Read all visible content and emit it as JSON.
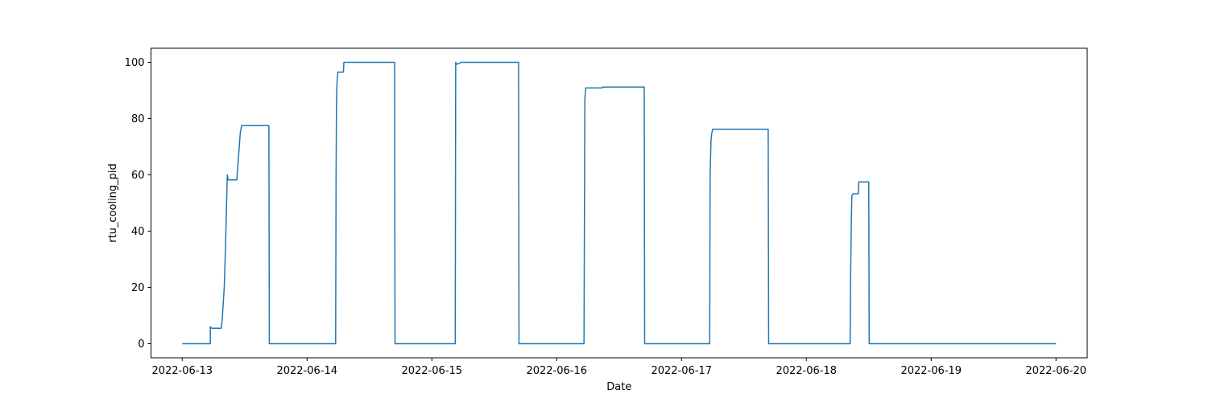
{
  "chart_data": {
    "type": "line",
    "title": "",
    "xlabel": "Date",
    "ylabel": "rtu_cooling_pid",
    "xlim": [
      "2022-06-12T18:00",
      "2022-06-20T06:00"
    ],
    "ylim": [
      -5,
      105
    ],
    "grid": false,
    "legend": "none",
    "x_ticks": [
      "2022-06-13",
      "2022-06-14",
      "2022-06-15",
      "2022-06-16",
      "2022-06-17",
      "2022-06-18",
      "2022-06-19",
      "2022-06-20"
    ],
    "y_ticks": [
      0,
      20,
      40,
      60,
      80,
      100
    ],
    "series": [
      {
        "color": "#1f77b4",
        "points": [
          [
            "2022-06-13T00:00",
            0
          ],
          [
            "2022-06-13T05:24",
            0
          ],
          [
            "2022-06-13T05:24",
            6.0
          ],
          [
            "2022-06-13T05:40",
            5.5
          ],
          [
            "2022-06-13T07:30",
            5.5
          ],
          [
            "2022-06-13T07:40",
            8.0
          ],
          [
            "2022-06-13T08:05",
            20.0
          ],
          [
            "2022-06-13T08:20",
            35.0
          ],
          [
            "2022-06-13T08:40",
            60.0
          ],
          [
            "2022-06-13T08:50",
            58.2
          ],
          [
            "2022-06-13T10:30",
            58.2
          ],
          [
            "2022-06-13T11:10",
            75.0
          ],
          [
            "2022-06-13T11:25",
            77.5
          ],
          [
            "2022-06-13T16:40",
            77.5
          ],
          [
            "2022-06-13T16:45",
            0
          ],
          [
            "2022-06-14T05:30",
            0
          ],
          [
            "2022-06-14T05:35",
            60.0
          ],
          [
            "2022-06-14T05:40",
            86.0
          ],
          [
            "2022-06-14T05:45",
            92.0
          ],
          [
            "2022-06-14T05:55",
            96.5
          ],
          [
            "2022-06-14T07:00",
            96.5
          ],
          [
            "2022-06-14T07:05",
            100.0
          ],
          [
            "2022-06-14T16:50",
            100.0
          ],
          [
            "2022-06-14T16:55",
            0
          ],
          [
            "2022-06-15T04:30",
            0
          ],
          [
            "2022-06-15T04:35",
            100.0
          ],
          [
            "2022-06-15T04:45",
            99.3
          ],
          [
            "2022-06-15T05:20",
            99.7
          ],
          [
            "2022-06-15T05:40",
            100.0
          ],
          [
            "2022-06-15T16:40",
            100.0
          ],
          [
            "2022-06-15T16:45",
            0
          ],
          [
            "2022-06-16T05:15",
            0
          ],
          [
            "2022-06-16T05:25",
            87.0
          ],
          [
            "2022-06-16T05:35",
            90.9
          ],
          [
            "2022-06-16T08:45",
            90.9
          ],
          [
            "2022-06-16T08:50",
            91.2
          ],
          [
            "2022-06-16T16:50",
            91.2
          ],
          [
            "2022-06-16T16:55",
            0
          ],
          [
            "2022-06-17T05:25",
            0
          ],
          [
            "2022-06-17T05:30",
            60.0
          ],
          [
            "2022-06-17T05:40",
            72.0
          ],
          [
            "2022-06-17T05:50",
            75.0
          ],
          [
            "2022-06-17T06:00",
            76.2
          ],
          [
            "2022-06-17T16:40",
            76.2
          ],
          [
            "2022-06-17T16:45",
            0
          ],
          [
            "2022-06-18T08:25",
            0
          ],
          [
            "2022-06-18T08:30",
            22.0
          ],
          [
            "2022-06-18T08:40",
            45.0
          ],
          [
            "2022-06-18T08:45",
            52.5
          ],
          [
            "2022-06-18T09:00",
            53.3
          ],
          [
            "2022-06-18T10:00",
            53.3
          ],
          [
            "2022-06-18T10:05",
            57.5
          ],
          [
            "2022-06-18T12:00",
            57.5
          ],
          [
            "2022-06-18T12:05",
            0
          ],
          [
            "2022-06-20T00:00",
            0
          ]
        ]
      }
    ]
  }
}
